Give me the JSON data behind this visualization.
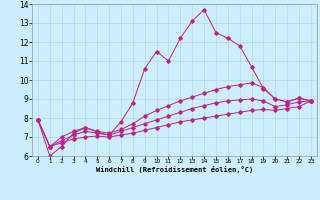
{
  "xlabel": "Windchill (Refroidissement éolien,°C)",
  "background_color": "#cceeff",
  "line_color": "#bb2288",
  "xlim": [
    -0.5,
    23.5
  ],
  "ylim": [
    6,
    14
  ],
  "yticks": [
    6,
    7,
    8,
    9,
    10,
    11,
    12,
    13,
    14
  ],
  "xticks": [
    0,
    1,
    2,
    3,
    4,
    5,
    6,
    7,
    8,
    9,
    10,
    11,
    12,
    13,
    14,
    15,
    16,
    17,
    18,
    19,
    20,
    21,
    22,
    23
  ],
  "series1_x": [
    0,
    1,
    2,
    3,
    4,
    5,
    6,
    7,
    8,
    9,
    10,
    11,
    12,
    13,
    14,
    15,
    16,
    17,
    18,
    19,
    20,
    21,
    22,
    23
  ],
  "series1_y": [
    7.9,
    6.0,
    6.5,
    7.2,
    7.5,
    7.25,
    7.1,
    7.8,
    8.8,
    10.6,
    11.5,
    11.0,
    12.2,
    13.1,
    13.7,
    12.5,
    12.2,
    11.8,
    10.7,
    9.55,
    9.0,
    8.85,
    9.05,
    8.9
  ],
  "series2_x": [
    0,
    1,
    2,
    3,
    4,
    5,
    6,
    7,
    8,
    9,
    10,
    11,
    12,
    13,
    14,
    15,
    16,
    17,
    18,
    19,
    20,
    21,
    22,
    23
  ],
  "series2_y": [
    7.9,
    6.5,
    7.0,
    7.3,
    7.5,
    7.3,
    7.2,
    7.4,
    7.7,
    8.1,
    8.4,
    8.65,
    8.9,
    9.1,
    9.3,
    9.5,
    9.65,
    9.75,
    9.85,
    9.6,
    9.0,
    8.85,
    9.05,
    8.9
  ],
  "series3_x": [
    0,
    1,
    2,
    3,
    4,
    5,
    6,
    7,
    8,
    9,
    10,
    11,
    12,
    13,
    14,
    15,
    16,
    17,
    18,
    19,
    20,
    21,
    22,
    23
  ],
  "series3_y": [
    7.9,
    6.5,
    6.8,
    7.1,
    7.3,
    7.2,
    7.1,
    7.3,
    7.5,
    7.7,
    7.9,
    8.1,
    8.3,
    8.5,
    8.65,
    8.8,
    8.9,
    8.95,
    9.0,
    8.9,
    8.6,
    8.7,
    8.85,
    8.9
  ],
  "series4_x": [
    0,
    1,
    2,
    3,
    4,
    5,
    6,
    7,
    8,
    9,
    10,
    11,
    12,
    13,
    14,
    15,
    16,
    17,
    18,
    19,
    20,
    21,
    22,
    23
  ],
  "series4_y": [
    7.9,
    6.5,
    6.7,
    6.9,
    7.0,
    7.05,
    7.0,
    7.1,
    7.2,
    7.35,
    7.5,
    7.65,
    7.8,
    7.9,
    8.0,
    8.1,
    8.2,
    8.3,
    8.4,
    8.45,
    8.4,
    8.5,
    8.6,
    8.9
  ]
}
